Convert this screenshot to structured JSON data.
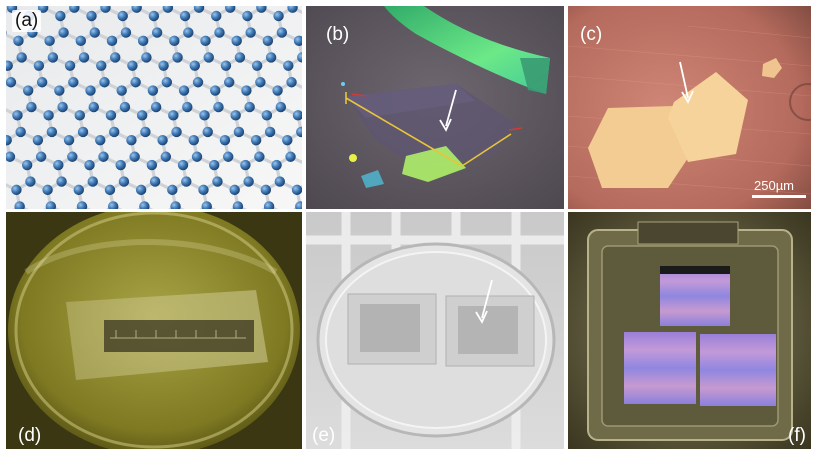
{
  "panels": {
    "a": {
      "label": "(a)",
      "subject": "graphene-lattice"
    },
    "b": {
      "label": "(b)",
      "subject": "flake-micrograph"
    },
    "c": {
      "label": "(c)",
      "subject": "hexagonal-grains",
      "scale_bar": "250µm"
    },
    "d": {
      "label": "(d)",
      "subject": "petri-dish-film"
    },
    "e": {
      "label": "(e)",
      "subject": "glass-dish-transfer"
    },
    "f": {
      "label": "(f)",
      "subject": "wafers-in-tray"
    }
  },
  "colors": {
    "atom": "#3d78b5",
    "bond": "#d6d9dc",
    "flake_green": "#5fe07a",
    "copper": "#c7796a",
    "grain": "#f0c890",
    "solution": "#8e8a2a",
    "wafer": "#a58ad8"
  }
}
